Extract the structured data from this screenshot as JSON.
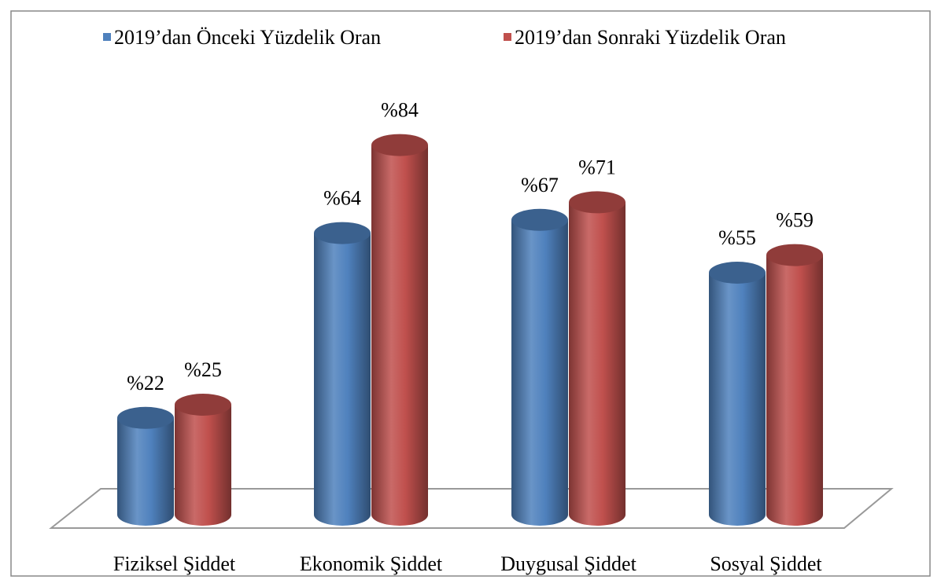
{
  "chart_data": {
    "type": "bar",
    "categories": [
      "Fiziksel Şiddet",
      "Ekonomik Şiddet",
      "Duygusal Şiddet",
      "Sosyal Şiddet"
    ],
    "series": [
      {
        "name": "2019’dan Önceki Yüzdelik Oran",
        "color": "#4f81bd",
        "values": [
          22,
          64,
          67,
          55
        ],
        "value_labels": [
          "%22",
          "%64",
          "%67",
          "%55"
        ]
      },
      {
        "name": "2019’dan Sonraki Yüzdelik Oran",
        "color": "#c0504d",
        "values": [
          25,
          84,
          71,
          59
        ],
        "value_labels": [
          "%25",
          "%84",
          "%71",
          "%59"
        ]
      }
    ]
  }
}
